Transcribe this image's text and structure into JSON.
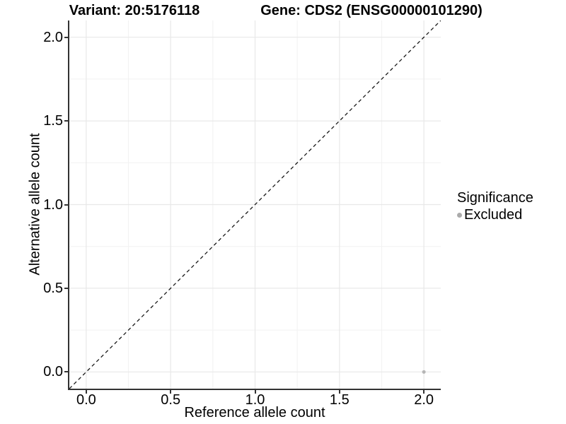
{
  "header": {
    "title_left": "Variant: 20:5176118",
    "title_right": "Gene: CDS2 (ENSG00000101290)"
  },
  "chart_data": {
    "type": "scatter",
    "title": "Variant: 20:5176118   Gene: CDS2 (ENSG00000101290)",
    "xlabel": "Reference allele count",
    "ylabel": "Alternative allele count",
    "xlim": [
      -0.1,
      2.1
    ],
    "ylim": [
      -0.1,
      2.1
    ],
    "x_ticks": {
      "values": [
        0,
        0.5,
        1,
        1.5,
        2
      ],
      "labels": [
        "0.0",
        "0.5",
        "1.0",
        "1.5",
        "2.0"
      ]
    },
    "y_ticks": {
      "values": [
        0,
        0.5,
        1,
        1.5,
        2
      ],
      "labels": [
        "0.0",
        "0.5",
        "1.0",
        "1.5",
        "2.0"
      ]
    },
    "x_minor": [
      0.25,
      0.75,
      1.25,
      1.75
    ],
    "y_minor": [
      0.25,
      0.75,
      1.25,
      1.75
    ],
    "grid": "major+minor",
    "reference_line": {
      "type": "identity y=x",
      "style": "dashed",
      "color": "#1a1a1a",
      "dash": "5 4"
    },
    "series": [
      {
        "name": "Excluded",
        "color": "#b5b5b5",
        "points": [
          {
            "x": 2.0,
            "y": 0.0
          }
        ]
      }
    ],
    "legend_position": "right"
  },
  "legend": {
    "title": "Significance",
    "items": [
      {
        "label": "Excluded",
        "color": "#ababab"
      }
    ]
  },
  "colors": {
    "background": "#ffffff",
    "axis_line": "#333333",
    "grid_major": "#e8e8e8",
    "grid_minor": "#f2f2f2",
    "tick_text": "#000000",
    "point": "#b5b5b5"
  }
}
